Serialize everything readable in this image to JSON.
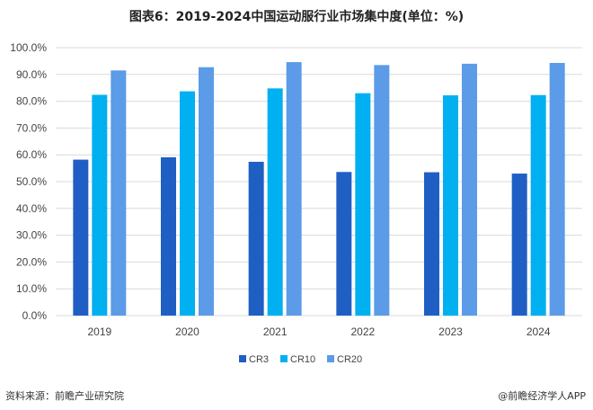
{
  "chart_data": {
    "type": "bar",
    "title": "图表6：2019-2024中国运动服行业市场集中度(单位：%)",
    "categories": [
      "2019",
      "2020",
      "2021",
      "2022",
      "2023",
      "2024"
    ],
    "series": [
      {
        "name": "CR3",
        "color": "#1f5fc4",
        "values": [
          58.2,
          59.1,
          57.4,
          53.6,
          53.5,
          53.0
        ]
      },
      {
        "name": "CR10",
        "color": "#00b0f0",
        "values": [
          82.4,
          83.7,
          84.8,
          83.0,
          82.2,
          82.3
        ]
      },
      {
        "name": "CR20",
        "color": "#5b9be8",
        "values": [
          91.5,
          92.7,
          94.6,
          93.5,
          94.0,
          94.3
        ]
      }
    ],
    "xlabel": "",
    "ylabel": "",
    "ylim": [
      0,
      100
    ],
    "yticks": [
      "0.0%",
      "10.0%",
      "20.0%",
      "30.0%",
      "40.0%",
      "50.0%",
      "60.0%",
      "70.0%",
      "80.0%",
      "90.0%",
      "100.0%"
    ],
    "grid": true,
    "legend": "bottom"
  },
  "footer": {
    "source": "资料来源：前瞻产业研究院",
    "credit": "@前瞻经济学人APP"
  }
}
